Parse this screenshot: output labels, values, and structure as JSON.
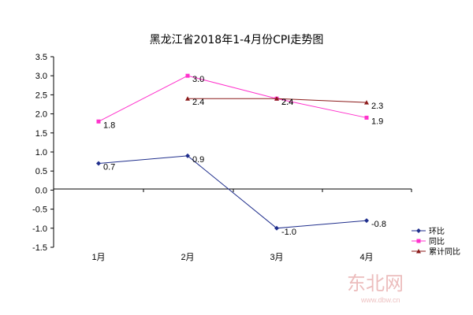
{
  "chart_data": {
    "type": "line",
    "title": "黑龙江省2018年1-4月份CPI走势图",
    "categories": [
      "1月",
      "2月",
      "3月",
      "4月"
    ],
    "ylim": [
      -1.5,
      3.5
    ],
    "yticks": [
      "3.5",
      "3.0",
      "2.5",
      "2.0",
      "1.5",
      "1.0",
      "0.5",
      "0.0",
      "-0.5",
      "-1.0",
      "-1.5"
    ],
    "legend_position": "bottom-right",
    "grid": false,
    "series": [
      {
        "name": "环比",
        "color": "#1f2e8c",
        "marker": "diamond",
        "values": [
          0.7,
          0.9,
          -1.0,
          -0.8
        ],
        "labels": [
          "0.7",
          "0.9",
          "-1.0",
          "-0.8"
        ]
      },
      {
        "name": "同比",
        "color": "#ff33cc",
        "marker": "square",
        "values": [
          1.8,
          3.0,
          2.4,
          1.9
        ],
        "labels": [
          "1.8",
          "3.0",
          "2.4",
          "1.9"
        ]
      },
      {
        "name": "累计同比",
        "color": "#8b1a1a",
        "marker": "triangle",
        "values": [
          null,
          2.4,
          2.4,
          2.3
        ],
        "labels": [
          null,
          "2.4",
          "2.4",
          "2.3"
        ]
      }
    ]
  },
  "watermark": {
    "logo_text": "东北网",
    "url_text": "www.dbw.cn"
  }
}
